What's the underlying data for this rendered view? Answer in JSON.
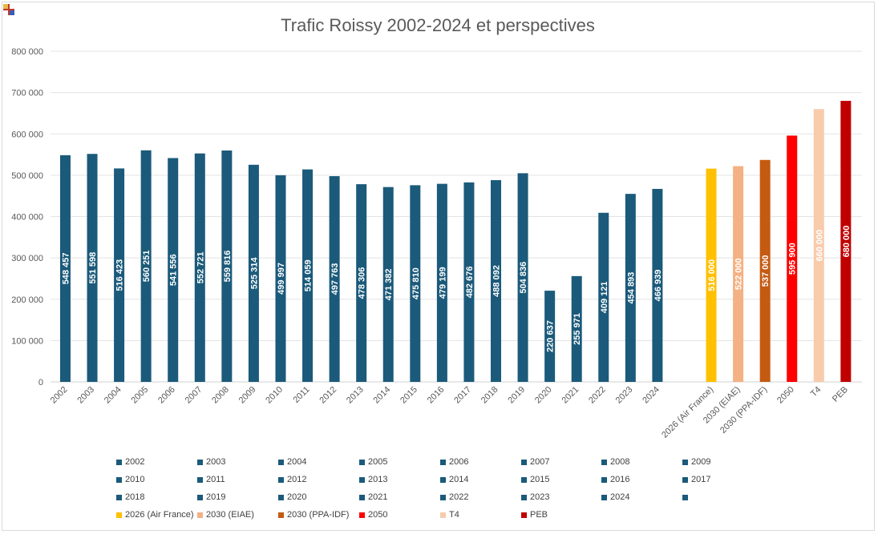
{
  "chart_data": {
    "type": "bar",
    "title": "Trafic Roissy 2002-2024 et perspectives",
    "xlabel": "",
    "ylabel": "",
    "ylim": [
      0,
      800000
    ],
    "y_ticks": [
      "0",
      "100 000",
      "200 000",
      "300 000",
      "400 000",
      "500 000",
      "600 000",
      "700 000",
      "800 000"
    ],
    "grid": true,
    "legend_position": "bottom",
    "gap_after_index": 22,
    "categories": [
      "2002",
      "2003",
      "2004",
      "2005",
      "2006",
      "2007",
      "2008",
      "2009",
      "2010",
      "2011",
      "2012",
      "2013",
      "2014",
      "2015",
      "2016",
      "2017",
      "2018",
      "2019",
      "2020",
      "2021",
      "2022",
      "2023",
      "2024",
      "2026 (Air France)",
      "2030 (EIAE)",
      "2030 (PPA-IDF)",
      "2050",
      "T4",
      "PEB"
    ],
    "values": [
      548457,
      551598,
      516423,
      560251,
      541556,
      552721,
      559816,
      525314,
      499997,
      514059,
      497763,
      478306,
      471382,
      475810,
      479199,
      482676,
      488092,
      504836,
      220637,
      255971,
      409121,
      454893,
      466939,
      516000,
      522000,
      537000,
      595900,
      660000,
      680000
    ],
    "labels": [
      "548 457",
      "551 598",
      "516 423",
      "560 251",
      "541 556",
      "552 721",
      "559 816",
      "525 314",
      "499 997",
      "514 059",
      "497 763",
      "478 306",
      "471 382",
      "475 810",
      "479 199",
      "482 676",
      "488 092",
      "504 836",
      "220 637",
      "255 971",
      "409 121",
      "454 893",
      "466 939",
      "516 000",
      "522 000",
      "537 000",
      "595 900",
      "660 000",
      "680 000"
    ],
    "colors": [
      "#1b5a7a",
      "#1b5a7a",
      "#1b5a7a",
      "#1b5a7a",
      "#1b5a7a",
      "#1b5a7a",
      "#1b5a7a",
      "#1b5a7a",
      "#1b5a7a",
      "#1b5a7a",
      "#1b5a7a",
      "#1b5a7a",
      "#1b5a7a",
      "#1b5a7a",
      "#1b5a7a",
      "#1b5a7a",
      "#1b5a7a",
      "#1b5a7a",
      "#1b5a7a",
      "#1b5a7a",
      "#1b5a7a",
      "#1b5a7a",
      "#1b5a7a",
      "#ffc000",
      "#f4b183",
      "#c55a11",
      "#ff0000",
      "#f8cbad",
      "#c00000"
    ],
    "label_colors": [
      "#ffffff",
      "#ffffff",
      "#ffffff",
      "#ffffff",
      "#ffffff",
      "#ffffff",
      "#ffffff",
      "#ffffff",
      "#ffffff",
      "#ffffff",
      "#ffffff",
      "#ffffff",
      "#ffffff",
      "#ffffff",
      "#ffffff",
      "#ffffff",
      "#ffffff",
      "#ffffff",
      "#ffffff",
      "#ffffff",
      "#ffffff",
      "#ffffff",
      "#ffffff",
      "#ffffff",
      "#ffffff",
      "#ffffff",
      "#ffffff",
      "#ffffff",
      "#ffffff"
    ],
    "legend": [
      {
        "label": "2002",
        "color": "#1b5a7a"
      },
      {
        "label": "2003",
        "color": "#1b5a7a"
      },
      {
        "label": "2004",
        "color": "#1b5a7a"
      },
      {
        "label": "2005",
        "color": "#1b5a7a"
      },
      {
        "label": "2006",
        "color": "#1b5a7a"
      },
      {
        "label": "2007",
        "color": "#1b5a7a"
      },
      {
        "label": "2008",
        "color": "#1b5a7a"
      },
      {
        "label": "2009",
        "color": "#1b5a7a"
      },
      {
        "label": "2010",
        "color": "#1b5a7a"
      },
      {
        "label": "2011",
        "color": "#1b5a7a"
      },
      {
        "label": "2012",
        "color": "#1b5a7a"
      },
      {
        "label": "2013",
        "color": "#1b5a7a"
      },
      {
        "label": "2014",
        "color": "#1b5a7a"
      },
      {
        "label": "2015",
        "color": "#1b5a7a"
      },
      {
        "label": "2016",
        "color": "#1b5a7a"
      },
      {
        "label": "2017",
        "color": "#1b5a7a"
      },
      {
        "label": "2018",
        "color": "#1b5a7a"
      },
      {
        "label": "2019",
        "color": "#1b5a7a"
      },
      {
        "label": "2020",
        "color": "#1b5a7a"
      },
      {
        "label": "2021",
        "color": "#1b5a7a"
      },
      {
        "label": "2022",
        "color": "#1b5a7a"
      },
      {
        "label": "2023",
        "color": "#1b5a7a"
      },
      {
        "label": "2024",
        "color": "#1b5a7a"
      },
      {
        "label": "",
        "color": "#1b5a7a"
      },
      {
        "label": "2026 (Air France)",
        "color": "#ffc000"
      },
      {
        "label": "2030 (EIAE)",
        "color": "#f4b183"
      },
      {
        "label": "2030 (PPA-IDF)",
        "color": "#c55a11"
      },
      {
        "label": "2050",
        "color": "#ff0000"
      },
      {
        "label": "T4",
        "color": "#f8cbad"
      },
      {
        "label": "PEB",
        "color": "#c00000"
      }
    ]
  }
}
